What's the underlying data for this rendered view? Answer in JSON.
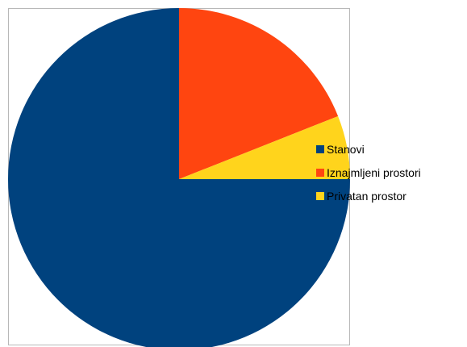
{
  "chart_data": {
    "type": "pie",
    "categories": [
      "Stanovi",
      "Iznajmljeni prostori",
      "Privatan prostor"
    ],
    "values": [
      75,
      19,
      6
    ],
    "colors": [
      "#00427e",
      "#ff4510",
      "#ffd41c"
    ],
    "title": "",
    "legend_position": "right"
  }
}
